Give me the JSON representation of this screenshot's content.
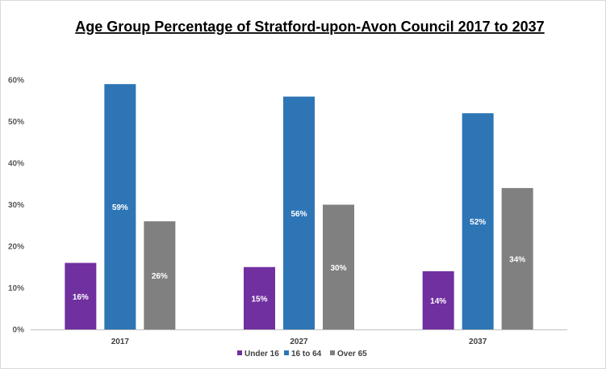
{
  "chart_data": {
    "type": "bar",
    "title": "Age Group Percentage of Stratford-upon-Avon Council 2017 to 2037",
    "xlabel": "",
    "ylabel": "",
    "categories": [
      "2017",
      "2027",
      "2037"
    ],
    "ylim": [
      0,
      60
    ],
    "yticks": [
      0,
      10,
      20,
      30,
      40,
      50,
      60
    ],
    "ytick_labels": [
      "0%",
      "10%",
      "20%",
      "30%",
      "40%",
      "50%",
      "60%"
    ],
    "grid": false,
    "legend_position": "bottom",
    "series": [
      {
        "name": "Under 16",
        "color": "#7030a0",
        "values": [
          16,
          15,
          14
        ],
        "labels": [
          "16%",
          "15%",
          "14%"
        ]
      },
      {
        "name": "16 to 64",
        "color": "#2e75b6",
        "values": [
          59,
          56,
          52
        ],
        "labels": [
          "59%",
          "56%",
          "52%"
        ]
      },
      {
        "name": "Over 65",
        "color": "#808080",
        "values": [
          26,
          30,
          34
        ],
        "labels": [
          "26%",
          "30%",
          "34%"
        ]
      }
    ]
  }
}
